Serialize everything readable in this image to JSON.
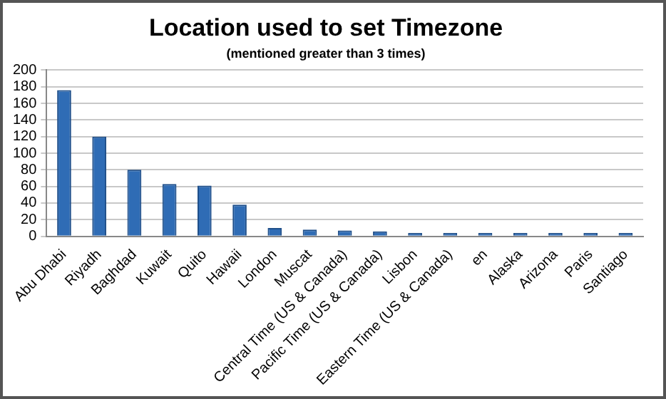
{
  "chart_data": {
    "type": "bar",
    "title": "Location used to set Timezone",
    "subtitle": "(mentioned greater than 3 times)",
    "categories": [
      "Abu Dhabi",
      "Riyadh",
      "Baghdad",
      "Kuwait",
      "Quito",
      "Hawaii",
      "London",
      "Muscat",
      "Central Time (US & Canada)",
      "Pacific Time (US & Canada)",
      "Lisbon",
      "Eastern Time (US & Canada)",
      "en",
      "Alaska",
      "Arizona",
      "Paris",
      "Santiago"
    ],
    "values": [
      176,
      120,
      80,
      63,
      61,
      38,
      10,
      8,
      7,
      6,
      4,
      4,
      4,
      4,
      4,
      4,
      4
    ],
    "color": "#2f6cb5",
    "ylim": [
      0,
      200
    ],
    "yticks": [
      0,
      20,
      40,
      60,
      80,
      100,
      120,
      140,
      160,
      180,
      200
    ],
    "grid": "y",
    "legend": false
  }
}
